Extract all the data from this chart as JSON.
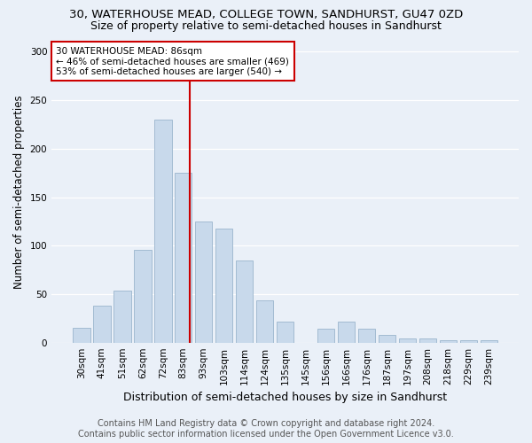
{
  "title": "30, WATERHOUSE MEAD, COLLEGE TOWN, SANDHURST, GU47 0ZD",
  "subtitle": "Size of property relative to semi-detached houses in Sandhurst",
  "xlabel": "Distribution of semi-detached houses by size in Sandhurst",
  "ylabel": "Number of semi-detached properties",
  "bar_labels": [
    "30sqm",
    "41sqm",
    "51sqm",
    "62sqm",
    "72sqm",
    "83sqm",
    "93sqm",
    "103sqm",
    "114sqm",
    "124sqm",
    "135sqm",
    "145sqm",
    "156sqm",
    "166sqm",
    "176sqm",
    "187sqm",
    "197sqm",
    "208sqm",
    "218sqm",
    "229sqm",
    "239sqm"
  ],
  "bar_values": [
    15,
    38,
    54,
    96,
    230,
    175,
    125,
    118,
    85,
    44,
    22,
    0,
    14,
    22,
    14,
    8,
    4,
    4,
    2,
    2,
    2
  ],
  "bar_color": "#c8d9eb",
  "bar_edgecolor": "#9ab5cc",
  "vline_color": "#cc0000",
  "vline_pos": 5.3,
  "annotation_text": "30 WATERHOUSE MEAD: 86sqm\n← 46% of semi-detached houses are smaller (469)\n53% of semi-detached houses are larger (540) →",
  "annotation_box_edgecolor": "#cc0000",
  "ylim": [
    0,
    310
  ],
  "yticks": [
    0,
    50,
    100,
    150,
    200,
    250,
    300
  ],
  "bg_color": "#eaf0f8",
  "plot_bg_color": "#eaf0f8",
  "footer_line1": "Contains HM Land Registry data © Crown copyright and database right 2024.",
  "footer_line2": "Contains public sector information licensed under the Open Government Licence v3.0.",
  "title_fontsize": 9.5,
  "subtitle_fontsize": 9,
  "xlabel_fontsize": 9,
  "ylabel_fontsize": 8.5,
  "tick_fontsize": 7.5,
  "annotation_fontsize": 7.5,
  "footer_fontsize": 7
}
